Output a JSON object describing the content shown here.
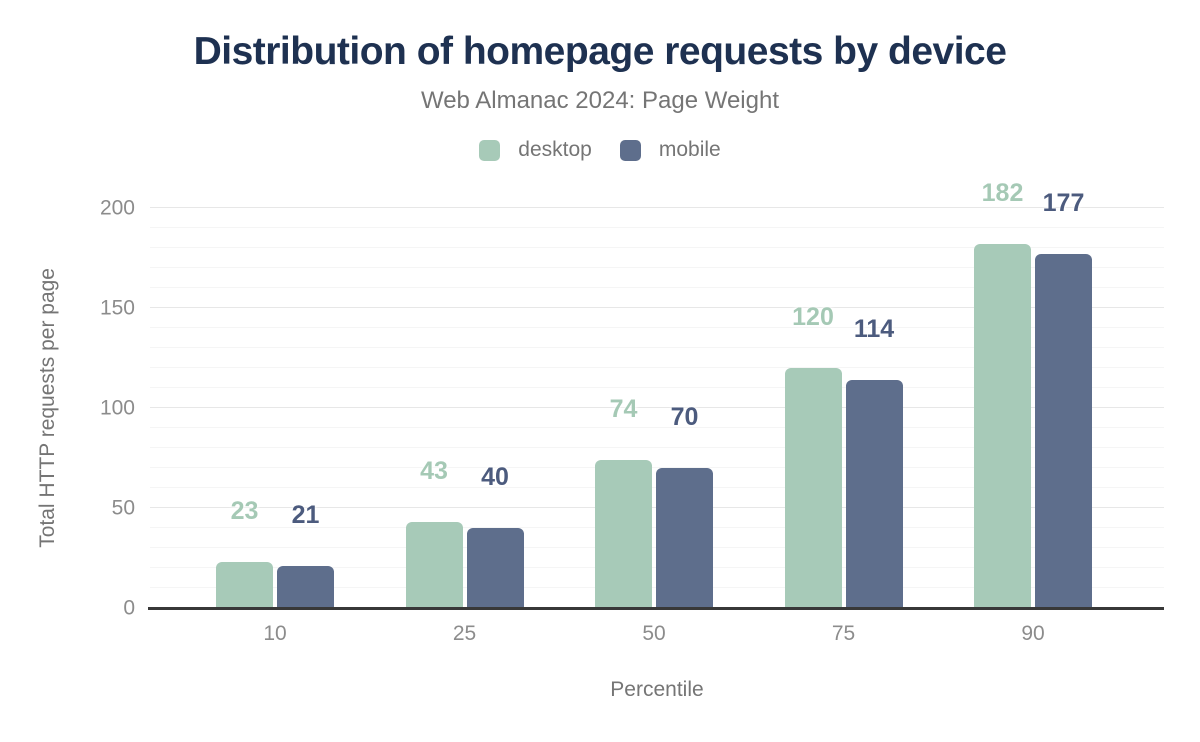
{
  "header": {
    "title": "Distribution of homepage requests by device",
    "subtitle": "Web Almanac 2024: Page Weight"
  },
  "chart_data": {
    "type": "bar",
    "title": "Distribution of homepage requests by device",
    "subtitle": "Web Almanac 2024: Page Weight",
    "categories": [
      "10",
      "25",
      "50",
      "75",
      "90"
    ],
    "series": [
      {
        "name": "desktop",
        "values": [
          23,
          43,
          74,
          120,
          182
        ],
        "color": "#a7cab8",
        "label_color": "#a5c9b5"
      },
      {
        "name": "mobile",
        "values": [
          21,
          40,
          70,
          114,
          177
        ],
        "color": "#5e6e8c",
        "label_color": "#4c5b7e"
      }
    ],
    "xlabel": "Percentile",
    "ylabel": "Total HTTP requests per page",
    "ylim": [
      0,
      200
    ],
    "yticks": [
      0,
      50,
      100,
      150,
      200
    ],
    "grid": {
      "orientation": "horizontal",
      "minor_step": 10,
      "major_step": 50
    },
    "legend_position": "top",
    "data_labels": "above bars"
  },
  "colors": {
    "title": "#1e3151",
    "muted_text": "#757575",
    "tick_text": "#8c8c8c",
    "axis_line": "#383838",
    "grid_minor": "#f5f5f5",
    "grid_major": "#e7e7e7",
    "background": "#ffffff"
  }
}
